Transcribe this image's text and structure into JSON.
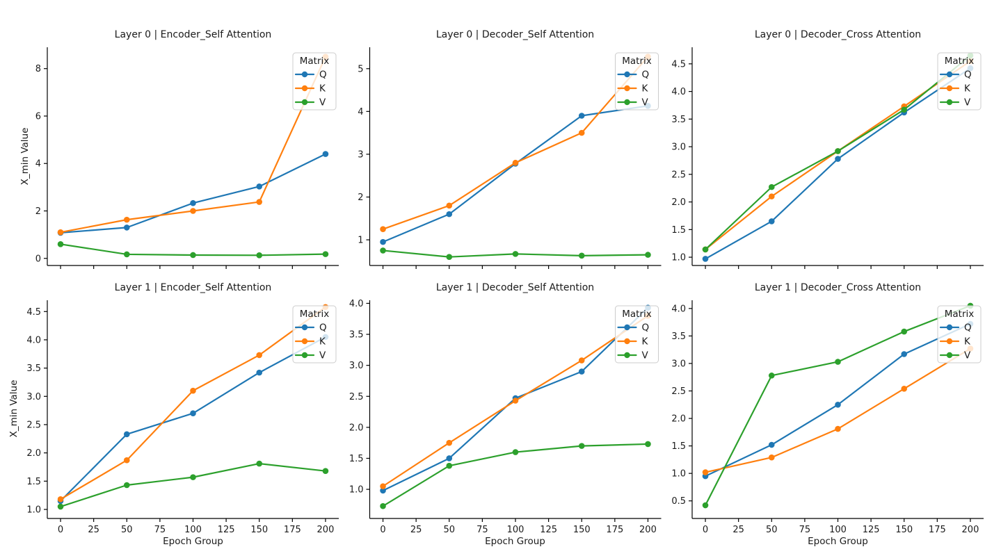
{
  "figure": {
    "xlabel": "Epoch Group",
    "ylabel": "X_min Value",
    "legend": {
      "title": "Matrix",
      "entries": [
        "Q",
        "K",
        "V"
      ]
    },
    "colors": {
      "Q": "#1f77b4",
      "K": "#ff7f0e",
      "V": "#2ca02c"
    },
    "xticks": [
      0,
      25,
      50,
      75,
      100,
      125,
      150,
      175,
      200
    ],
    "xlim": [
      -10,
      210
    ]
  },
  "chart_data": [
    {
      "type": "line",
      "title": "Layer 0 | Encoder_Self Attention",
      "row": 0,
      "col": 0,
      "x": [
        0,
        50,
        100,
        150,
        200
      ],
      "series": [
        {
          "name": "Q",
          "values": [
            1.08,
            1.3,
            2.33,
            3.03,
            4.4
          ]
        },
        {
          "name": "K",
          "values": [
            1.1,
            1.63,
            2.0,
            2.38,
            8.5
          ]
        },
        {
          "name": "V",
          "values": [
            0.6,
            0.17,
            0.14,
            0.13,
            0.18
          ]
        }
      ],
      "yticks": [
        0,
        2,
        4,
        6,
        8
      ],
      "ytick_labels": [
        "0",
        "2",
        "4",
        "6",
        "8"
      ],
      "ylim": [
        -0.3,
        8.9
      ]
    },
    {
      "type": "line",
      "title": "Layer 0 | Decoder_Self Attention",
      "row": 0,
      "col": 1,
      "x": [
        0,
        50,
        100,
        150,
        200
      ],
      "series": [
        {
          "name": "Q",
          "values": [
            0.95,
            1.6,
            2.78,
            3.9,
            4.13
          ]
        },
        {
          "name": "K",
          "values": [
            1.25,
            1.8,
            2.8,
            3.5,
            5.28
          ]
        },
        {
          "name": "V",
          "values": [
            0.75,
            0.6,
            0.67,
            0.63,
            0.65
          ]
        }
      ],
      "yticks": [
        1,
        2,
        3,
        4,
        5
      ],
      "ytick_labels": [
        "1",
        "2",
        "3",
        "4",
        "5"
      ],
      "ylim": [
        0.4,
        5.5
      ]
    },
    {
      "type": "line",
      "title": "Layer 0 | Decoder_Cross Attention",
      "row": 0,
      "col": 2,
      "x": [
        0,
        50,
        100,
        150,
        200
      ],
      "series": [
        {
          "name": "Q",
          "values": [
            0.97,
            1.65,
            2.78,
            3.62,
            4.42
          ]
        },
        {
          "name": "K",
          "values": [
            1.14,
            2.1,
            2.92,
            3.73,
            4.55
          ]
        },
        {
          "name": "V",
          "values": [
            1.14,
            2.27,
            2.92,
            3.67,
            4.65
          ]
        }
      ],
      "yticks": [
        1.0,
        1.5,
        2.0,
        2.5,
        3.0,
        3.5,
        4.0,
        4.5
      ],
      "ytick_labels": [
        "1.0",
        "1.5",
        "2.0",
        "2.5",
        "3.0",
        "3.5",
        "4.0",
        "4.5"
      ],
      "ylim": [
        0.85,
        4.8
      ]
    },
    {
      "type": "line",
      "title": "Layer 1 | Encoder_Self Attention",
      "row": 1,
      "col": 0,
      "x": [
        0,
        50,
        100,
        150,
        200
      ],
      "series": [
        {
          "name": "Q",
          "values": [
            1.15,
            2.33,
            2.7,
            3.42,
            4.05
          ]
        },
        {
          "name": "K",
          "values": [
            1.18,
            1.87,
            3.1,
            3.73,
            4.58
          ]
        },
        {
          "name": "V",
          "values": [
            1.05,
            1.43,
            1.57,
            1.81,
            1.68
          ]
        }
      ],
      "yticks": [
        1.0,
        1.5,
        2.0,
        2.5,
        3.0,
        3.5,
        4.0,
        4.5
      ],
      "ytick_labels": [
        "1.0",
        "1.5",
        "2.0",
        "2.5",
        "3.0",
        "3.5",
        "4.0",
        "4.5"
      ],
      "ylim": [
        0.84,
        4.7
      ]
    },
    {
      "type": "line",
      "title": "Layer 1 | Decoder_Self Attention",
      "row": 1,
      "col": 1,
      "x": [
        0,
        50,
        100,
        150,
        200
      ],
      "series": [
        {
          "name": "Q",
          "values": [
            0.98,
            1.5,
            2.47,
            2.9,
            3.93
          ]
        },
        {
          "name": "K",
          "values": [
            1.05,
            1.75,
            2.43,
            3.08,
            3.8
          ]
        },
        {
          "name": "V",
          "values": [
            0.73,
            1.38,
            1.6,
            1.7,
            1.73
          ]
        }
      ],
      "yticks": [
        1.0,
        1.5,
        2.0,
        2.5,
        3.0,
        3.5,
        4.0
      ],
      "ytick_labels": [
        "1.0",
        "1.5",
        "2.0",
        "2.5",
        "3.0",
        "3.5",
        "4.0"
      ],
      "ylim": [
        0.53,
        4.05
      ]
    },
    {
      "type": "line",
      "title": "Layer 1 | Decoder_Cross Attention",
      "row": 1,
      "col": 2,
      "x": [
        0,
        50,
        100,
        150,
        200
      ],
      "series": [
        {
          "name": "Q",
          "values": [
            0.95,
            1.52,
            2.25,
            3.17,
            3.72
          ]
        },
        {
          "name": "K",
          "values": [
            1.02,
            1.29,
            1.81,
            2.54,
            3.27
          ]
        },
        {
          "name": "V",
          "values": [
            0.42,
            2.78,
            3.03,
            3.58,
            4.05
          ]
        }
      ],
      "yticks": [
        0.5,
        1.0,
        1.5,
        2.0,
        2.5,
        3.0,
        3.5,
        4.0
      ],
      "ytick_labels": [
        "0.5",
        "1.0",
        "1.5",
        "2.0",
        "2.5",
        "3.0",
        "3.5",
        "4.0"
      ],
      "ylim": [
        0.18,
        4.15
      ]
    }
  ]
}
